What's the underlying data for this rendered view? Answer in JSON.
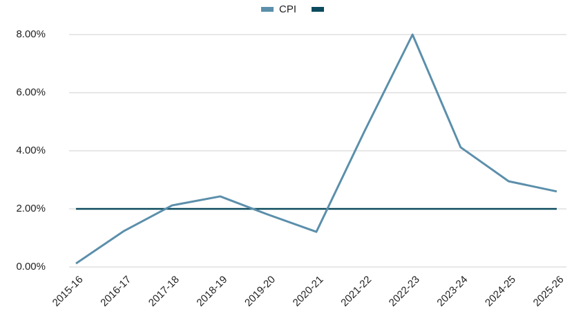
{
  "chart_data": {
    "type": "line",
    "categories": [
      "2015-16",
      "2016-17",
      "2017-18",
      "2018-19",
      "2019-20",
      "2020-21",
      "2021-22",
      "2022-23",
      "2023-24",
      "2024-25",
      "2025-26"
    ],
    "series": [
      {
        "name": "CPI",
        "color": "#5b8fab",
        "values": [
          0.12,
          1.24,
          2.12,
          2.43,
          1.8,
          1.21,
          4.67,
          8.0,
          4.12,
          2.95,
          2.6
        ]
      },
      {
        "color": "#0c4a5e",
        "values": [
          2,
          2,
          2,
          2,
          2,
          2,
          2,
          2,
          2,
          2,
          2
        ]
      }
    ],
    "ylim": [
      0,
      8
    ],
    "yticks": [
      {
        "value": 0,
        "label": "0.00%"
      },
      {
        "value": 2,
        "label": "2.00%"
      },
      {
        "value": 4,
        "label": "4.00%"
      },
      {
        "value": 6,
        "label": "6.00%"
      },
      {
        "value": 8,
        "label": "8.00%"
      }
    ],
    "grid": true,
    "legend": "top"
  }
}
